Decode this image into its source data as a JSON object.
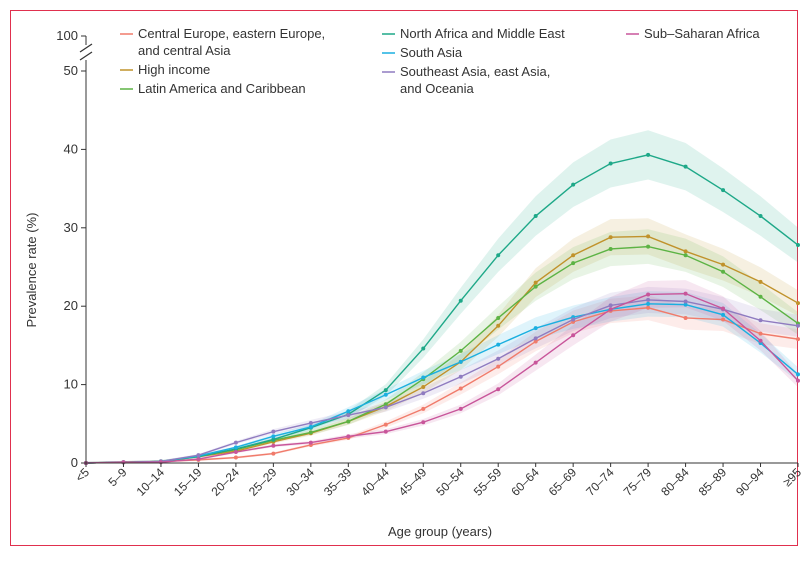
{
  "chart_data": {
    "type": "line",
    "xlabel": "Age group (years)",
    "ylabel": "Prevalence rate (%)",
    "categories": [
      "<5",
      "5–9",
      "10–14",
      "15–19",
      "20–24",
      "25–29",
      "30–34",
      "35–39",
      "40–44",
      "45–49",
      "50–54",
      "55–59",
      "60–64",
      "65–69",
      "70–74",
      "75–79",
      "80–84",
      "85–89",
      "90–94",
      "≥95"
    ],
    "ylim": [
      0,
      50
    ],
    "y_ticks": [
      "0",
      "10",
      "20",
      "30",
      "40",
      "50"
    ],
    "y_break_label": "100",
    "legend_position": "top",
    "grid": false,
    "series": [
      {
        "name": "Central Europe, eastern Europe, and central Asia",
        "legend_lines": [
          "Central Europe, eastern Europe,",
          "and central Asia"
        ],
        "color": "#f07b6b",
        "values": [
          0,
          0.1,
          0.2,
          0.4,
          0.7,
          1.2,
          2.3,
          3.2,
          4.9,
          6.9,
          9.5,
          12.3,
          15.5,
          18.0,
          19.4,
          19.8,
          18.5,
          18.3,
          16.5,
          15.8
        ]
      },
      {
        "name": "High income",
        "legend_lines": [
          "High income"
        ],
        "color": "#c0922b",
        "values": [
          0,
          0.1,
          0.2,
          0.8,
          1.5,
          2.7,
          3.8,
          5.3,
          7.2,
          9.7,
          12.9,
          17.5,
          23.0,
          26.5,
          28.8,
          28.9,
          27.0,
          25.3,
          23.1,
          20.4
        ]
      },
      {
        "name": "Latin America and Caribbean",
        "legend_lines": [
          "Latin America and Caribbean"
        ],
        "color": "#5cb344",
        "values": [
          0,
          0.1,
          0.2,
          0.9,
          1.7,
          2.9,
          3.9,
          5.3,
          7.5,
          10.7,
          14.3,
          18.5,
          22.5,
          25.5,
          27.3,
          27.6,
          26.5,
          24.4,
          21.2,
          17.8
        ]
      },
      {
        "name": "North Africa and Middle East",
        "legend_lines": [
          "North Africa and Middle East"
        ],
        "color": "#1ea888",
        "values": [
          0,
          0.1,
          0.2,
          0.8,
          1.8,
          3.0,
          4.5,
          6.2,
          9.3,
          14.6,
          20.7,
          26.5,
          31.5,
          35.5,
          38.2,
          39.3,
          37.8,
          34.8,
          31.5,
          27.8
        ]
      },
      {
        "name": "South Asia",
        "legend_lines": [
          "South Asia"
        ],
        "color": "#1aafe0",
        "values": [
          0,
          0.1,
          0.2,
          0.9,
          2.0,
          3.4,
          4.6,
          6.6,
          8.7,
          10.9,
          12.9,
          15.1,
          17.2,
          18.6,
          19.6,
          20.3,
          20.2,
          18.9,
          15.3,
          11.3
        ]
      },
      {
        "name": "Southeast Asia, east Asia, and Oceania",
        "legend_lines": [
          "Southeast Asia, east Asia,",
          "and Oceania"
        ],
        "color": "#8f7bc0",
        "values": [
          0,
          0.1,
          0.2,
          1.0,
          2.6,
          4.0,
          5.1,
          6.1,
          7.1,
          8.9,
          11.0,
          13.3,
          15.9,
          18.3,
          20.1,
          20.8,
          20.6,
          19.6,
          18.2,
          17.5
        ]
      },
      {
        "name": "Sub-Saharan Africa",
        "legend_lines": [
          "Sub–Saharan Africa"
        ],
        "color": "#c8559a",
        "values": [
          0,
          0.1,
          0.1,
          0.5,
          1.4,
          2.2,
          2.6,
          3.4,
          4.0,
          5.2,
          6.9,
          9.4,
          12.8,
          16.3,
          19.6,
          21.5,
          21.6,
          19.7,
          15.6,
          10.5
        ]
      }
    ]
  }
}
